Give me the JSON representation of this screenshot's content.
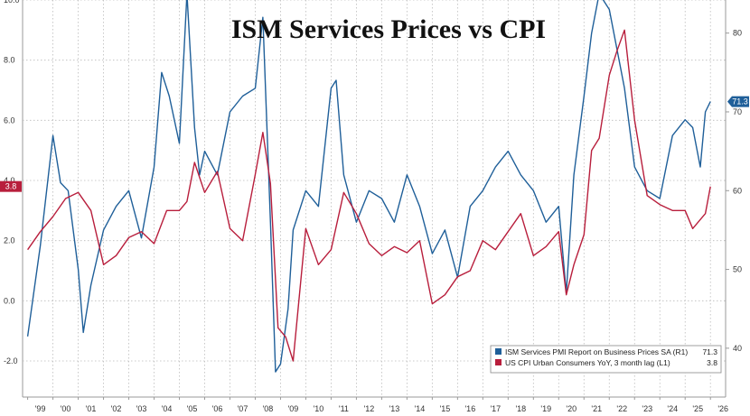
{
  "chart_data": {
    "type": "line",
    "title": "ISM Services Prices vs CPI",
    "x_tick_labels": [
      "'99",
      "'00",
      "'01",
      "'02",
      "'03",
      "'04",
      "'05",
      "'06",
      "'07",
      "'08",
      "'09",
      "'10",
      "'11",
      "'12",
      "'13",
      "'14",
      "'15",
      "'16",
      "'17",
      "'18",
      "'19",
      "'20",
      "'21",
      "'22",
      "'23",
      "'24",
      "'25",
      "'26"
    ],
    "left_axis": {
      "ticks": [
        -2.0,
        0.0,
        2.0,
        4.0,
        6.0,
        8.0,
        10.0
      ],
      "tick_labels": [
        "-2.0",
        "0.0",
        "2.0",
        "4.0",
        "6.0",
        "8.0",
        "10.0"
      ],
      "ylim": [
        -3.2,
        10.0
      ]
    },
    "right_axis": {
      "ticks": [
        40,
        50,
        60,
        70,
        80
      ],
      "tick_labels": [
        "40",
        "50",
        "60",
        "70",
        "80"
      ],
      "ylim": [
        33.8,
        84.2
      ]
    },
    "grid": true,
    "legend_placement": "bottom-right",
    "series": [
      {
        "name": "ISM Services PMI Report on Business Prices SA (R1)",
        "legend_value": "71.3",
        "axis": "right",
        "color": "#1f5f99",
        "badge_label": "71.3",
        "badge_color": "#1f5f99",
        "x": [
          1999.0,
          1999.5,
          2000.0,
          2000.3,
          2000.6,
          2001.0,
          2001.2,
          2001.5,
          2002.0,
          2002.5,
          2003.0,
          2003.5,
          2004.0,
          2004.3,
          2004.6,
          2005.0,
          2005.3,
          2005.6,
          2005.8,
          2006.0,
          2006.5,
          2007.0,
          2007.5,
          2008.0,
          2008.3,
          2008.6,
          2008.8,
          2009.0,
          2009.3,
          2009.5,
          2010.0,
          2010.5,
          2011.0,
          2011.2,
          2011.5,
          2012.0,
          2012.5,
          2013.0,
          2013.5,
          2014.0,
          2014.5,
          2015.0,
          2015.5,
          2016.0,
          2016.5,
          2017.0,
          2017.5,
          2018.0,
          2018.5,
          2019.0,
          2019.5,
          2020.0,
          2020.3,
          2020.6,
          2021.0,
          2021.3,
          2021.6,
          2022.0,
          2022.3,
          2022.6,
          2023.0,
          2023.5,
          2024.0,
          2024.5,
          2025.0,
          2025.3,
          2025.6,
          2025.8,
          2026.0
        ],
        "values": [
          41.5,
          53.0,
          67.0,
          61.0,
          60.0,
          50.0,
          42.0,
          48.0,
          55.0,
          58.0,
          60.0,
          54.0,
          63.0,
          75.0,
          72.0,
          66.0,
          85.0,
          68.0,
          62.0,
          65.0,
          62.0,
          70.0,
          72.0,
          73.0,
          82.0,
          56.0,
          37.0,
          38.0,
          45.0,
          55.0,
          60.0,
          58.0,
          73.0,
          74.0,
          62.0,
          56.0,
          60.0,
          59.0,
          56.0,
          62.0,
          58.0,
          52.0,
          55.0,
          49.0,
          58.0,
          60.0,
          63.0,
          65.0,
          62.0,
          60.0,
          56.0,
          58.0,
          47.0,
          62.0,
          72.0,
          80.0,
          85.0,
          83.0,
          78.0,
          73.0,
          63.0,
          60.0,
          59.0,
          67.0,
          69.0,
          68.0,
          63.0,
          70.0,
          71.3
        ]
      },
      {
        "name": "US CPI Urban Consumers YoY, 3 month lag (L1)",
        "legend_value": "3.8",
        "axis": "left",
        "color": "#b81e3c",
        "badge_label": "3.8",
        "badge_color": "#b81e3c",
        "x": [
          1999.0,
          1999.5,
          2000.0,
          2000.5,
          2001.0,
          2001.5,
          2002.0,
          2002.5,
          2003.0,
          2003.5,
          2004.0,
          2004.5,
          2005.0,
          2005.3,
          2005.6,
          2006.0,
          2006.5,
          2007.0,
          2007.5,
          2008.0,
          2008.3,
          2008.6,
          2008.9,
          2009.2,
          2009.5,
          2010.0,
          2010.5,
          2011.0,
          2011.5,
          2012.0,
          2012.5,
          2013.0,
          2013.5,
          2014.0,
          2014.5,
          2015.0,
          2015.5,
          2016.0,
          2016.5,
          2017.0,
          2017.5,
          2018.0,
          2018.5,
          2019.0,
          2019.5,
          2020.0,
          2020.3,
          2020.6,
          2021.0,
          2021.3,
          2021.6,
          2022.0,
          2022.3,
          2022.6,
          2023.0,
          2023.5,
          2024.0,
          2024.5,
          2025.0,
          2025.3,
          2025.6,
          2025.8,
          2026.0
        ],
        "values": [
          1.7,
          2.3,
          2.8,
          3.4,
          3.6,
          3.0,
          1.2,
          1.5,
          2.1,
          2.3,
          1.9,
          3.0,
          3.0,
          3.3,
          4.6,
          3.6,
          4.3,
          2.4,
          2.0,
          4.2,
          5.6,
          3.9,
          -0.9,
          -1.2,
          -2.0,
          2.4,
          1.2,
          1.7,
          3.6,
          2.9,
          1.9,
          1.5,
          1.8,
          1.6,
          2.0,
          -0.1,
          0.2,
          0.8,
          1.0,
          2.0,
          1.7,
          2.3,
          2.9,
          1.5,
          1.8,
          2.3,
          0.2,
          1.2,
          2.2,
          5.0,
          5.4,
          7.5,
          8.3,
          9.0,
          6.0,
          3.5,
          3.2,
          3.0,
          3.0,
          2.4,
          2.7,
          2.9,
          3.8
        ]
      }
    ]
  }
}
